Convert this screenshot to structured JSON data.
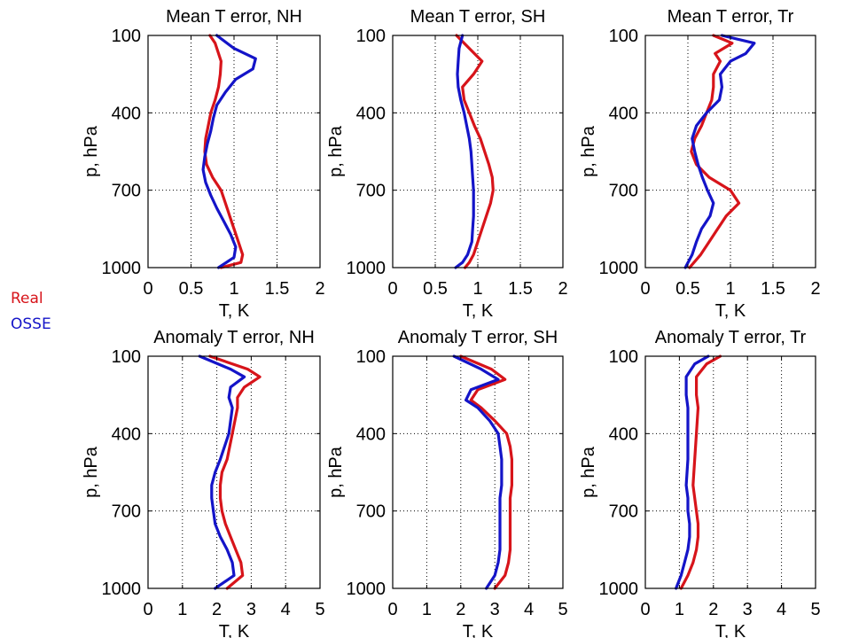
{
  "legend": [
    {
      "label": "Real",
      "color": "#d7141a"
    },
    {
      "label": "OSSE",
      "color": "#1414c8"
    }
  ],
  "colors": {
    "real": "#d7141a",
    "osse": "#1414c8",
    "axis": "#000000",
    "grid": "#000000"
  },
  "chart_data": [
    {
      "type": "line",
      "title": "Mean T error, NH",
      "xlabel": "T, K",
      "ylabel": "p, hPa",
      "xlim": [
        0,
        2
      ],
      "ylim": [
        100,
        1000
      ],
      "xticks": [
        "0",
        "0.5",
        "1",
        "1.5",
        "2"
      ],
      "yticks": [
        "100",
        "400",
        "700",
        "1000"
      ],
      "grid": true,
      "series": [
        {
          "name": "Real",
          "y": [
            100,
            130,
            200,
            250,
            300,
            350,
            400,
            450,
            500,
            550,
            600,
            650,
            700,
            750,
            800,
            850,
            900,
            950,
            980,
            1000
          ],
          "x": [
            0.72,
            0.78,
            0.85,
            0.84,
            0.82,
            0.78,
            0.73,
            0.7,
            0.67,
            0.66,
            0.68,
            0.75,
            0.85,
            0.9,
            0.95,
            1.0,
            1.05,
            1.1,
            1.08,
            0.85
          ]
        },
        {
          "name": "OSSE",
          "y": [
            100,
            150,
            190,
            230,
            270,
            320,
            370,
            420,
            470,
            520,
            570,
            620,
            670,
            720,
            770,
            820,
            870,
            920,
            960,
            1000
          ],
          "x": [
            0.8,
            1.0,
            1.25,
            1.22,
            1.02,
            0.9,
            0.8,
            0.76,
            0.73,
            0.69,
            0.66,
            0.64,
            0.67,
            0.73,
            0.8,
            0.88,
            0.96,
            1.02,
            1.0,
            0.82
          ]
        }
      ]
    },
    {
      "type": "line",
      "title": "Mean T error, SH",
      "xlabel": "T, K",
      "ylabel": "p, hPa",
      "xlim": [
        0,
        2
      ],
      "ylim": [
        100,
        1000
      ],
      "xticks": [
        "0",
        "0.5",
        "1",
        "1.5",
        "2"
      ],
      "yticks": [
        "100",
        "400",
        "700",
        "1000"
      ],
      "grid": true,
      "series": [
        {
          "name": "Real",
          "y": [
            100,
            150,
            200,
            250,
            300,
            350,
            400,
            450,
            500,
            550,
            600,
            650,
            700,
            750,
            800,
            850,
            900,
            950,
            980,
            1000
          ],
          "x": [
            0.75,
            0.9,
            1.05,
            0.95,
            0.82,
            0.84,
            0.9,
            0.96,
            1.03,
            1.08,
            1.13,
            1.17,
            1.18,
            1.15,
            1.1,
            1.05,
            1.0,
            0.95,
            0.9,
            0.85
          ]
        },
        {
          "name": "OSSE",
          "y": [
            100,
            150,
            200,
            250,
            300,
            350,
            400,
            450,
            500,
            550,
            600,
            650,
            700,
            750,
            800,
            850,
            900,
            950,
            980,
            1000
          ],
          "x": [
            0.82,
            0.78,
            0.77,
            0.76,
            0.77,
            0.8,
            0.84,
            0.87,
            0.9,
            0.92,
            0.93,
            0.94,
            0.95,
            0.95,
            0.95,
            0.94,
            0.93,
            0.88,
            0.82,
            0.74
          ]
        }
      ]
    },
    {
      "type": "line",
      "title": "Mean T error, Tr",
      "xlabel": "T, K",
      "ylabel": "p, hPa",
      "xlim": [
        0,
        2
      ],
      "ylim": [
        100,
        1000
      ],
      "xticks": [
        "0",
        "0.5",
        "1",
        "1.5",
        "2"
      ],
      "yticks": [
        "100",
        "400",
        "700",
        "1000"
      ],
      "grid": true,
      "series": [
        {
          "name": "Real",
          "y": [
            100,
            130,
            170,
            200,
            250,
            300,
            350,
            400,
            450,
            500,
            550,
            600,
            650,
            700,
            750,
            800,
            850,
            900,
            950,
            1000
          ],
          "x": [
            0.8,
            1.02,
            0.82,
            0.88,
            0.8,
            0.8,
            0.78,
            0.72,
            0.66,
            0.58,
            0.54,
            0.6,
            0.75,
            1.0,
            1.1,
            0.95,
            0.85,
            0.75,
            0.65,
            0.52
          ]
        },
        {
          "name": "OSSE",
          "y": [
            100,
            130,
            170,
            200,
            250,
            300,
            350,
            400,
            450,
            500,
            550,
            600,
            650,
            700,
            750,
            800,
            850,
            900,
            950,
            1000
          ],
          "x": [
            0.9,
            1.28,
            1.18,
            1.0,
            0.88,
            0.9,
            0.87,
            0.72,
            0.6,
            0.55,
            0.58,
            0.62,
            0.67,
            0.73,
            0.8,
            0.76,
            0.66,
            0.6,
            0.55,
            0.47
          ]
        }
      ]
    },
    {
      "type": "line",
      "title": "Anomaly T error, NH",
      "xlabel": "T, K",
      "ylabel": "p, hPa",
      "xlim": [
        0,
        5
      ],
      "ylim": [
        100,
        1000
      ],
      "xticks": [
        "0",
        "1",
        "2",
        "3",
        "4",
        "5"
      ],
      "yticks": [
        "100",
        "400",
        "700",
        "1000"
      ],
      "grid": true,
      "series": [
        {
          "name": "Real",
          "y": [
            100,
            150,
            180,
            220,
            260,
            300,
            400,
            500,
            550,
            600,
            650,
            700,
            750,
            800,
            850,
            900,
            950,
            1000
          ],
          "x": [
            1.8,
            2.9,
            3.25,
            2.8,
            2.6,
            2.6,
            2.45,
            2.3,
            2.15,
            2.1,
            2.1,
            2.15,
            2.25,
            2.4,
            2.55,
            2.7,
            2.75,
            2.3
          ]
        },
        {
          "name": "OSSE",
          "y": [
            100,
            150,
            180,
            220,
            260,
            300,
            400,
            500,
            550,
            600,
            650,
            700,
            750,
            800,
            850,
            900,
            950,
            1000
          ],
          "x": [
            1.5,
            2.4,
            2.8,
            2.4,
            2.35,
            2.45,
            2.35,
            2.1,
            1.95,
            1.85,
            1.85,
            1.9,
            1.95,
            2.1,
            2.3,
            2.45,
            2.5,
            1.95
          ]
        }
      ]
    },
    {
      "type": "line",
      "title": "Anomaly T error, SH",
      "xlabel": "T, K",
      "ylabel": "p, hPa",
      "xlim": [
        0,
        5
      ],
      "ylim": [
        100,
        1000
      ],
      "xticks": [
        "0",
        "1",
        "2",
        "3",
        "4",
        "5"
      ],
      "yticks": [
        "100",
        "400",
        "700",
        "1000"
      ],
      "grid": true,
      "series": [
        {
          "name": "Real",
          "y": [
            100,
            150,
            190,
            230,
            270,
            300,
            350,
            400,
            450,
            500,
            550,
            600,
            650,
            700,
            750,
            800,
            850,
            900,
            950,
            1000
          ],
          "x": [
            2.0,
            2.9,
            3.3,
            2.5,
            2.3,
            2.6,
            3.0,
            3.35,
            3.45,
            3.5,
            3.5,
            3.5,
            3.45,
            3.45,
            3.45,
            3.45,
            3.45,
            3.4,
            3.3,
            3.0
          ]
        },
        {
          "name": "OSSE",
          "y": [
            100,
            150,
            190,
            230,
            270,
            300,
            350,
            400,
            450,
            500,
            550,
            600,
            650,
            700,
            750,
            800,
            850,
            900,
            950,
            1000
          ],
          "x": [
            1.8,
            2.6,
            3.1,
            2.3,
            2.15,
            2.5,
            2.85,
            3.1,
            3.15,
            3.2,
            3.2,
            3.2,
            3.15,
            3.15,
            3.15,
            3.15,
            3.15,
            3.1,
            3.0,
            2.75
          ]
        }
      ]
    },
    {
      "type": "line",
      "title": "Anomaly T error, Tr",
      "xlabel": "T, K",
      "ylabel": "p, hPa",
      "xlim": [
        0,
        5
      ],
      "ylim": [
        100,
        1000
      ],
      "xticks": [
        "0",
        "1",
        "2",
        "3",
        "4",
        "5"
      ],
      "yticks": [
        "100",
        "400",
        "700",
        "1000"
      ],
      "grid": true,
      "series": [
        {
          "name": "Real",
          "y": [
            100,
            130,
            180,
            250,
            300,
            400,
            500,
            600,
            650,
            700,
            750,
            800,
            850,
            900,
            950,
            1000
          ],
          "x": [
            2.2,
            1.8,
            1.5,
            1.5,
            1.55,
            1.5,
            1.45,
            1.4,
            1.45,
            1.5,
            1.55,
            1.55,
            1.5,
            1.4,
            1.25,
            1.05
          ]
        },
        {
          "name": "OSSE",
          "y": [
            100,
            130,
            180,
            250,
            300,
            400,
            500,
            600,
            650,
            700,
            750,
            800,
            850,
            900,
            950,
            1000
          ],
          "x": [
            1.85,
            1.45,
            1.2,
            1.2,
            1.25,
            1.25,
            1.25,
            1.2,
            1.25,
            1.25,
            1.3,
            1.3,
            1.25,
            1.15,
            1.05,
            0.9
          ]
        }
      ]
    }
  ]
}
